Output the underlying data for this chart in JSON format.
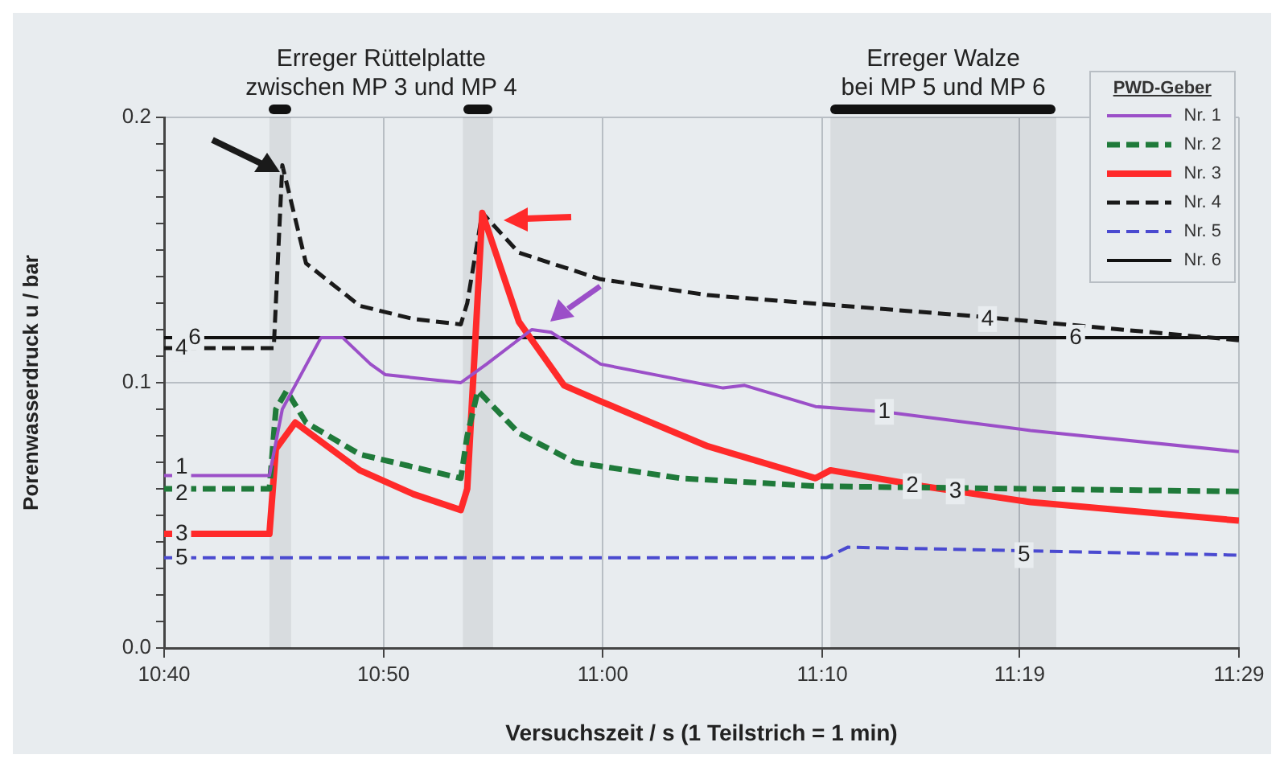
{
  "chart_data": {
    "type": "line",
    "xlabel": "Versuchszeit / s (1 Teilstrich = 1 min)",
    "ylabel": "Porenwasserdruck u / bar",
    "legend_title": "PWD-Geber",
    "legend": "top right",
    "grid": true,
    "marker": "none",
    "xlim": [
      10.6667,
      11.4833
    ],
    "ylim": [
      0,
      0.2
    ],
    "xticks": [
      {
        "value": 10.6667,
        "label": "10:40"
      },
      {
        "value": 10.8333,
        "label": "10:50"
      },
      {
        "value": 11,
        "label": "11:00"
      },
      {
        "value": 11.1667,
        "label": "11:10"
      },
      {
        "value": 11.3167,
        "label": "11:19"
      },
      {
        "value": 11.4833,
        "label": "11:29"
      }
    ],
    "yticks": [
      {
        "value": 0,
        "label": "0.0"
      },
      {
        "value": 0.01,
        "label": null
      },
      {
        "value": 0.02,
        "label": null
      },
      {
        "value": 0.03,
        "label": null
      },
      {
        "value": 0.04,
        "label": null
      },
      {
        "value": 0.05,
        "label": null
      },
      {
        "value": 0.06,
        "label": null
      },
      {
        "value": 0.07,
        "label": null
      },
      {
        "value": 0.08,
        "label": null
      },
      {
        "value": 0.09,
        "label": null
      },
      {
        "value": 0.1,
        "label": "0.1"
      },
      {
        "value": 0.11,
        "label": null
      },
      {
        "value": 0.12,
        "label": null
      },
      {
        "value": 0.13,
        "label": null
      },
      {
        "value": 0.14,
        "label": null
      },
      {
        "value": 0.15,
        "label": null
      },
      {
        "value": 0.16,
        "label": null
      },
      {
        "value": 0.17,
        "label": null
      },
      {
        "value": 0.18,
        "label": null
      },
      {
        "value": 0.19,
        "label": null
      },
      {
        "value": 0.2,
        "label": "0.2"
      }
    ],
    "series": [
      {
        "name": "Nr. 1",
        "color": "#9b4fc8",
        "line_style": "solid",
        "x": [
          10.6667,
          10.7467,
          10.7565,
          10.7859,
          10.8023,
          10.8235,
          10.8349,
          10.8921,
          10.9117,
          10.946,
          10.9607,
          10.9983,
          11.0914,
          11.1077,
          11.1616,
          11.2139,
          11.3249,
          11.4833
        ],
        "values": [
          0.065,
          0.065,
          0.09,
          0.117,
          0.117,
          0.107,
          0.103,
          0.1,
          0.107,
          0.12,
          0.119,
          0.107,
          0.098,
          0.099,
          0.091,
          0.089,
          0.082,
          0.074
        ]
      },
      {
        "name": "Nr. 2",
        "color": "#1f7a3a",
        "line_style": "dashed",
        "x": [
          10.6667,
          10.7467,
          10.7516,
          10.7598,
          10.7745,
          10.8153,
          10.8921,
          10.897,
          10.9051,
          10.9362,
          10.9787,
          11.0587,
          11.1616,
          11.4833
        ],
        "values": [
          0.06,
          0.06,
          0.09,
          0.097,
          0.085,
          0.073,
          0.064,
          0.08,
          0.097,
          0.081,
          0.07,
          0.064,
          0.061,
          0.059
        ]
      },
      {
        "name": "Nr. 3",
        "color": "#ff2a2a",
        "line_style": "solid",
        "x": [
          10.6667,
          10.7467,
          10.7516,
          10.7663,
          10.8153,
          10.8561,
          10.8921,
          10.897,
          10.9084,
          10.9362,
          10.9705,
          10.9983,
          11.0799,
          11.1616,
          11.173,
          11.2432,
          11.3249,
          11.4833
        ],
        "values": [
          0.043,
          0.043,
          0.075,
          0.085,
          0.067,
          0.058,
          0.052,
          0.06,
          0.164,
          0.123,
          0.099,
          0.093,
          0.076,
          0.064,
          0.067,
          0.061,
          0.055,
          0.048
        ]
      },
      {
        "name": "Nr. 4",
        "color": "#1a1a1a",
        "line_style": "dashed",
        "x": [
          10.6667,
          10.75,
          10.7565,
          10.7745,
          10.8153,
          10.8561,
          10.8921,
          10.897,
          10.9084,
          10.9362,
          10.9983,
          11.0799,
          11.2841,
          11.4833
        ],
        "values": [
          0.113,
          0.113,
          0.182,
          0.145,
          0.129,
          0.124,
          0.122,
          0.13,
          0.164,
          0.149,
          0.139,
          0.133,
          0.125,
          0.116
        ]
      },
      {
        "name": "Nr. 5",
        "color": "#4a4ad0",
        "line_style": "dashed",
        "x": [
          10.6667,
          11.1698,
          11.1861,
          11.4833
        ],
        "values": [
          0.034,
          0.034,
          0.038,
          0.035
        ]
      },
      {
        "name": "Nr. 6",
        "color": "#111111",
        "line_style": "solid",
        "x": [
          10.6667,
          11.4833
        ],
        "values": [
          0.117,
          0.117
        ]
      }
    ],
    "bands": [
      {
        "axis": "x",
        "from": 10.7467,
        "to": 10.7632,
        "label": "Erreger Rüttelplatte\nzwischen MP 3 und MP 4",
        "color": "#111111"
      },
      {
        "axis": "x",
        "from": 10.8937,
        "to": 10.9166,
        "color": "#111111"
      },
      {
        "axis": "x",
        "from": 11.173,
        "to": 11.3445,
        "label": "Erreger Walze\nbei MP 5 und MP 6",
        "color": "#111111"
      }
    ],
    "annotations": [
      {
        "text": "1",
        "x": 10.68,
        "y": 0.068
      },
      {
        "text": "2",
        "x": 10.68,
        "y": 0.058
      },
      {
        "text": "3",
        "x": 10.68,
        "y": 0.043
      },
      {
        "text": "4",
        "x": 10.68,
        "y": 0.113
      },
      {
        "text": "5",
        "x": 10.68,
        "y": 0.034
      },
      {
        "text": "6",
        "x": 10.69,
        "y": 0.117
      },
      {
        "text": "1",
        "x": 11.2139,
        "y": 0.089
      },
      {
        "text": "2",
        "x": 11.2351,
        "y": 0.061
      },
      {
        "text": "3",
        "x": 11.2678,
        "y": 0.059
      },
      {
        "text": "4",
        "x": 11.2923,
        "y": 0.124
      },
      {
        "text": "5",
        "x": 11.32,
        "y": 0.035
      },
      {
        "text": "6",
        "x": 11.3592,
        "y": 0.117
      }
    ]
  }
}
